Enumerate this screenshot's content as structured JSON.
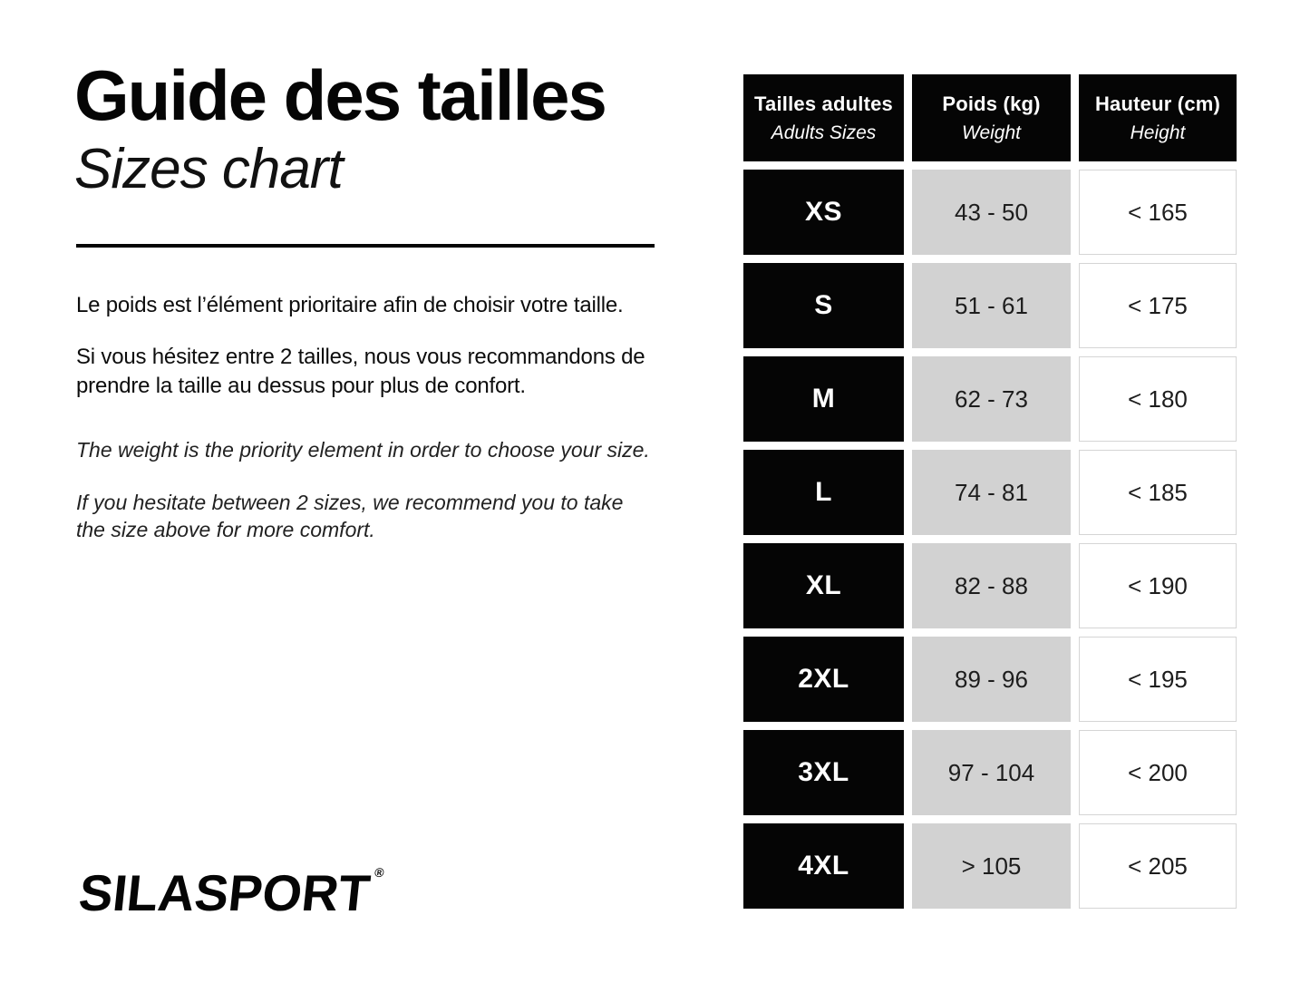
{
  "header": {
    "title_fr": "Guide des tailles",
    "title_en": "Sizes chart"
  },
  "intro": {
    "fr_1": "Le poids est l’élément prioritaire afin de choisir votre taille.",
    "fr_2": "Si vous hésitez entre 2 tailles, nous vous recommandons de prendre la taille au dessus pour plus de confort.",
    "en_1": "The weight is the priority element in order to choose your size.",
    "en_2": "If you hesitate between 2 sizes, we recommend you to take the size above for more comfort."
  },
  "brand": {
    "name": "SILASPORT",
    "registered": "®"
  },
  "table": {
    "headers": [
      {
        "fr": "Tailles adultes",
        "en": "Adults Sizes"
      },
      {
        "fr": "Poids (kg)",
        "en": "Weight"
      },
      {
        "fr": "Hauteur (cm)",
        "en": "Height"
      }
    ],
    "rows": [
      {
        "size": "XS",
        "weight": "43 - 50",
        "height": "< 165"
      },
      {
        "size": "S",
        "weight": "51 - 61",
        "height": "< 175"
      },
      {
        "size": "M",
        "weight": "62 - 73",
        "height": "< 180"
      },
      {
        "size": "L",
        "weight": "74 - 81",
        "height": "< 185"
      },
      {
        "size": "XL",
        "weight": "82 - 88",
        "height": "< 190"
      },
      {
        "size": "2XL",
        "weight": "89 - 96",
        "height": "< 195"
      },
      {
        "size": "3XL",
        "weight": "97 - 104",
        "height": "< 200"
      },
      {
        "size": "4XL",
        "weight": "> 105",
        "height": "< 205"
      }
    ]
  },
  "colors": {
    "cell_black": "#050505",
    "cell_gray": "#d2d2d2",
    "cell_white_border": "#d5d5d5",
    "text_dark": "#1d1d1d"
  }
}
